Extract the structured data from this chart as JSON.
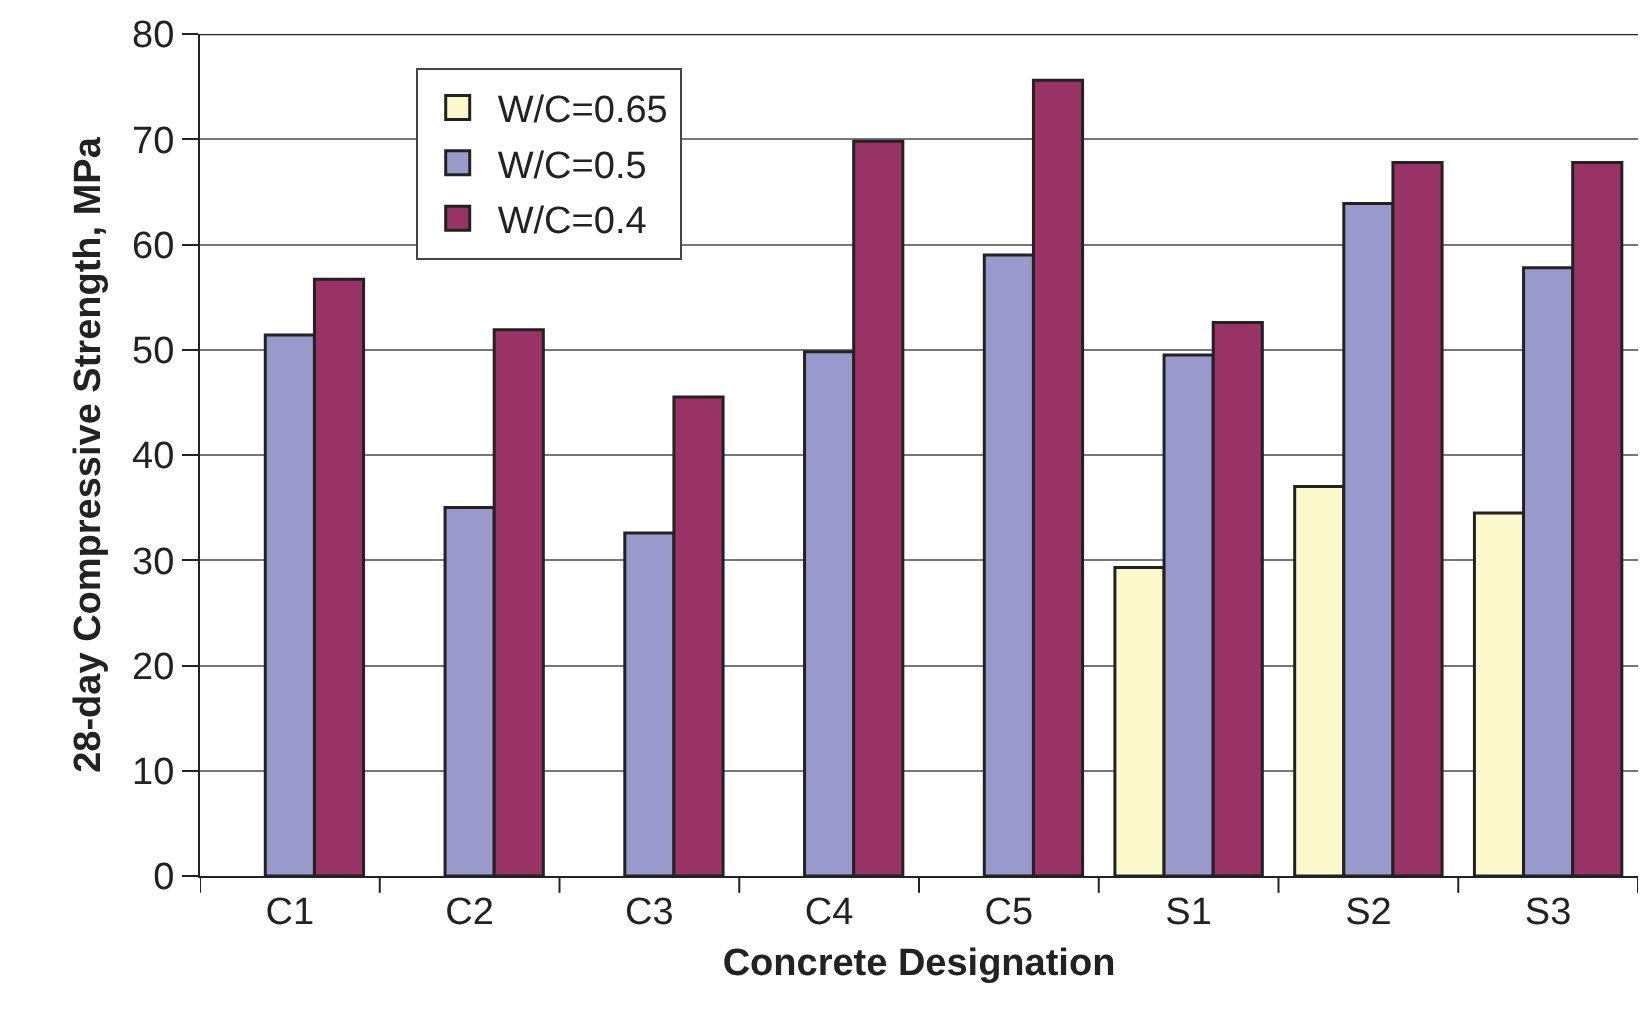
{
  "chart_data": {
    "type": "bar",
    "xlabel": "Concrete Designation",
    "ylabel": "28-day Compressive Strength, MPa",
    "categories": [
      "C1",
      "C2",
      "C3",
      "C4",
      "C5",
      "S1",
      "S2",
      "S3"
    ],
    "series": [
      {
        "name": "W/C=0.65",
        "color": "#fbf8cc",
        "values": [
          null,
          null,
          null,
          null,
          null,
          29.3,
          37.0,
          34.5
        ]
      },
      {
        "name": "W/C=0.5",
        "color": "#9999cc",
        "values": [
          51.4,
          35.0,
          32.6,
          49.8,
          59.0,
          49.5,
          63.9,
          57.8
        ]
      },
      {
        "name": "W/C=0.4",
        "color": "#993366",
        "values": [
          56.7,
          51.9,
          45.5,
          69.8,
          75.6,
          52.6,
          67.8,
          67.8
        ]
      }
    ],
    "ylim": [
      0,
      80
    ],
    "yticks": [
      0,
      10,
      20,
      30,
      40,
      50,
      60,
      70,
      80
    ],
    "grid": "y",
    "legend": "top left"
  }
}
